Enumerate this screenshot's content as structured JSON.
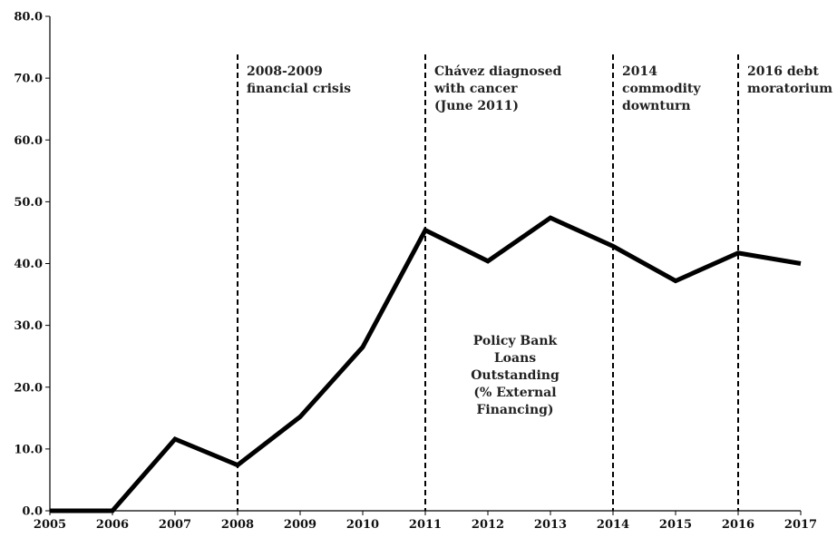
{
  "chart_data": {
    "type": "line",
    "title": "",
    "xlabel": "",
    "ylabel": "",
    "x": [
      2005,
      2006,
      2007,
      2008,
      2009,
      2010,
      2011,
      2012,
      2013,
      2014,
      2015,
      2016,
      2017
    ],
    "xlim": [
      2005,
      2017
    ],
    "ylim": [
      0,
      80
    ],
    "y_ticks": [
      "0.0",
      "10.0",
      "20.0",
      "30.0",
      "40.0",
      "50.0",
      "60.0",
      "70.0",
      "80.0"
    ],
    "x_ticks": [
      "2005",
      "2006",
      "2007",
      "2008",
      "2009",
      "2010",
      "2011",
      "2012",
      "2013",
      "2014",
      "2015",
      "2016",
      "2017"
    ],
    "grid": false,
    "legend": "none",
    "series": [
      {
        "name": "Policy Bank Loans Outstanding (% External Financing)",
        "label_lines": [
          "Policy Bank",
          "Loans",
          "Outstanding",
          "(% External",
          "Financing)"
        ],
        "values": [
          0.0,
          0.0,
          11.6,
          7.4,
          15.2,
          26.5,
          45.4,
          40.4,
          47.4,
          42.8,
          37.2,
          41.7,
          40.0
        ],
        "color": "#000000"
      }
    ],
    "events": [
      {
        "x": 2008,
        "lines": [
          "2008-2009",
          "financial crisis"
        ]
      },
      {
        "x": 2011,
        "lines": [
          "Chávez diagnosed",
          "with cancer",
          "(June 2011)"
        ]
      },
      {
        "x": 2014,
        "lines": [
          "2014",
          "commodity",
          "downturn"
        ]
      },
      {
        "x": 2016,
        "lines": [
          "2016 debt",
          "moratorium"
        ]
      }
    ]
  }
}
